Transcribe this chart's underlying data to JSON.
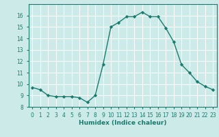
{
  "x": [
    0,
    1,
    2,
    3,
    4,
    5,
    6,
    7,
    8,
    9,
    10,
    11,
    12,
    13,
    14,
    15,
    16,
    17,
    18,
    19,
    20,
    21,
    22,
    23
  ],
  "y": [
    9.7,
    9.5,
    9.0,
    8.9,
    8.9,
    8.9,
    8.8,
    8.4,
    9.0,
    11.7,
    15.0,
    15.4,
    15.9,
    15.9,
    16.3,
    15.9,
    15.9,
    14.9,
    13.7,
    11.7,
    11.0,
    10.2,
    9.8,
    9.5
  ],
  "line_color": "#1a7a6e",
  "marker": "D",
  "marker_size": 2.2,
  "bg_color": "#cceae7",
  "grid_color": "#ffffff",
  "tick_color": "#1a7a6e",
  "label_color": "#1a7a6e",
  "xlabel": "Humidex (Indice chaleur)",
  "xlim": [
    -0.5,
    23.5
  ],
  "ylim": [
    8,
    17
  ],
  "yticks": [
    8,
    9,
    10,
    11,
    12,
    13,
    14,
    15,
    16
  ],
  "xticks": [
    0,
    1,
    2,
    3,
    4,
    5,
    6,
    7,
    8,
    9,
    10,
    11,
    12,
    13,
    14,
    15,
    16,
    17,
    18,
    19,
    20,
    21,
    22,
    23
  ],
  "xlabel_fontsize": 6.5,
  "tick_fontsize": 5.5,
  "linewidth": 1.0
}
